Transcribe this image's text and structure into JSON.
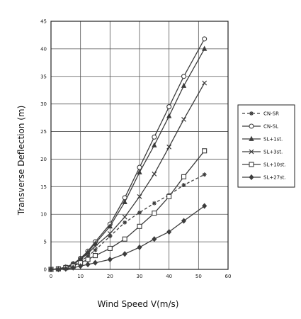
{
  "chart_data": {
    "type": "line",
    "title": "",
    "xlabel": "Wind Speed V(m/s)",
    "ylabel": "Transverse Deflection (m)",
    "xlim": [
      0,
      60
    ],
    "ylim": [
      0,
      45
    ],
    "xticks": [
      "0",
      "10",
      "20",
      "30",
      "40",
      "50",
      "60"
    ],
    "yticks": [
      "0",
      "5",
      "10",
      "15",
      "20",
      "25",
      "30",
      "35",
      "40",
      "45"
    ],
    "grid": true,
    "legend_position": "right",
    "series": [
      {
        "name": "CN-SR",
        "marker": "star",
        "dashed": true,
        "points": [
          [
            0,
            0
          ],
          [
            2.5,
            0
          ],
          [
            5,
            0.2
          ],
          [
            7.5,
            0.6
          ],
          [
            10,
            1.5
          ],
          [
            12.5,
            2.4
          ],
          [
            15,
            3.5
          ],
          [
            20,
            6
          ],
          [
            25,
            8.5
          ],
          [
            30,
            10.3
          ],
          [
            35,
            12
          ],
          [
            40,
            13.5
          ],
          [
            45,
            15.3
          ],
          [
            52,
            17.2
          ]
        ]
      },
      {
        "name": "CN-SL",
        "marker": "open-circle",
        "dashed": false,
        "points": [
          [
            0,
            0
          ],
          [
            2.5,
            0.1
          ],
          [
            5,
            0.4
          ],
          [
            7.5,
            1
          ],
          [
            10,
            2
          ],
          [
            12.5,
            3.3
          ],
          [
            15,
            5
          ],
          [
            20,
            8.2
          ],
          [
            25,
            13
          ],
          [
            30,
            18.5
          ],
          [
            35,
            24
          ],
          [
            40,
            29.5
          ],
          [
            45,
            35
          ],
          [
            52,
            41.8
          ]
        ]
      },
      {
        "name": "SL+1st.",
        "marker": "filled-triangle",
        "dashed": false,
        "points": [
          [
            0,
            0
          ],
          [
            2.5,
            0.1
          ],
          [
            5,
            0.4
          ],
          [
            7.5,
            1
          ],
          [
            10,
            1.9
          ],
          [
            12.5,
            3.1
          ],
          [
            15,
            4.7
          ],
          [
            20,
            7.8
          ],
          [
            25,
            12.2
          ],
          [
            30,
            17.6
          ],
          [
            35,
            22.5
          ],
          [
            40,
            27.8
          ],
          [
            45,
            33.3
          ],
          [
            52,
            40
          ]
        ]
      },
      {
        "name": "SL+3st.",
        "marker": "x",
        "dashed": false,
        "points": [
          [
            0,
            0
          ],
          [
            2.5,
            0.1
          ],
          [
            5,
            0.4
          ],
          [
            7.5,
            0.9
          ],
          [
            10,
            1.8
          ],
          [
            12.5,
            2.9
          ],
          [
            15,
            4.2
          ],
          [
            20,
            6.5
          ],
          [
            25,
            9.5
          ],
          [
            30,
            13.2
          ],
          [
            35,
            17.3
          ],
          [
            40,
            22.2
          ],
          [
            45,
            27.2
          ],
          [
            52,
            33.8
          ]
        ]
      },
      {
        "name": "SL+10st.",
        "marker": "open-square",
        "dashed": false,
        "points": [
          [
            0,
            0
          ],
          [
            2.5,
            0.1
          ],
          [
            5,
            0.3
          ],
          [
            7.5,
            0.6
          ],
          [
            10,
            1.2
          ],
          [
            12.5,
            1.8
          ],
          [
            15,
            2.5
          ],
          [
            20,
            3.8
          ],
          [
            25,
            5.5
          ],
          [
            30,
            7.8
          ],
          [
            35,
            10.2
          ],
          [
            40,
            13.2
          ],
          [
            45,
            16.8
          ],
          [
            52,
            21.5
          ]
        ]
      },
      {
        "name": "SL+27st.",
        "marker": "filled-diamond",
        "dashed": false,
        "points": [
          [
            0,
            0
          ],
          [
            2.5,
            0
          ],
          [
            5,
            0.1
          ],
          [
            7.5,
            0.3
          ],
          [
            10,
            0.6
          ],
          [
            12.5,
            0.9
          ],
          [
            15,
            1.2
          ],
          [
            20,
            1.8
          ],
          [
            25,
            2.8
          ],
          [
            30,
            4
          ],
          [
            35,
            5.5
          ],
          [
            40,
            6.8
          ],
          [
            45,
            8.8
          ],
          [
            52,
            11.5
          ]
        ]
      }
    ],
    "line_color": "#3c3c3c"
  }
}
